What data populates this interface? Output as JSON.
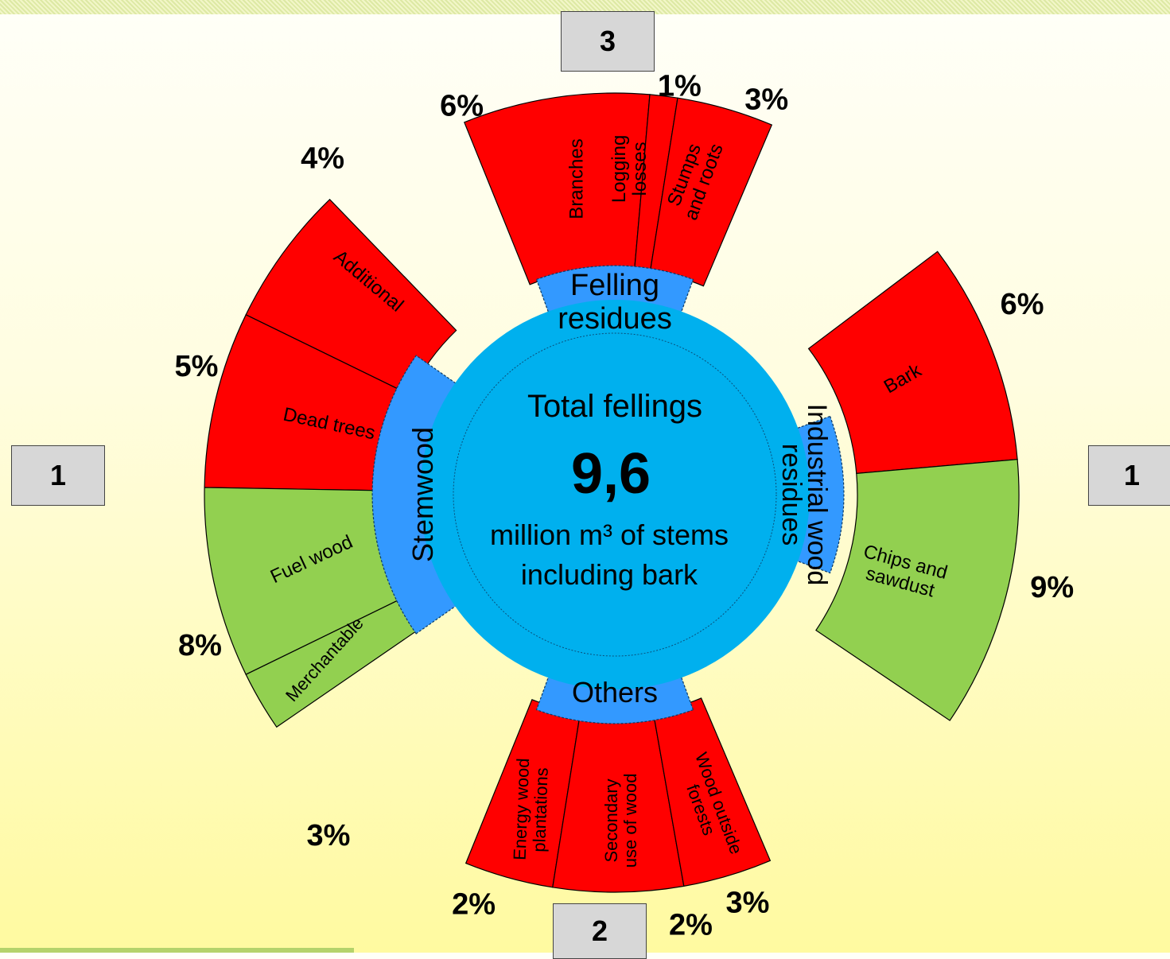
{
  "center": {
    "title": "Total fellings",
    "value": "9,6",
    "unit_line1": "million m³ of stems",
    "unit_line2": "including bark"
  },
  "markers": {
    "left": "1",
    "right": "1",
    "top": "3",
    "bottom": "2"
  },
  "colors": {
    "center_circle": "#00b0ee",
    "inner_band": "#3399ff",
    "residue_segment": "#ff0000",
    "wood_segment": "#92d050",
    "marker_box": "#d7d7d7"
  },
  "groups": [
    {
      "id": "felling",
      "label_lines": [
        "Felling",
        "residues"
      ],
      "segments": [
        {
          "label_lines": [
            "Branches"
          ],
          "percent": "6%",
          "color": "red"
        },
        {
          "label_lines": [
            "Logging",
            "losses"
          ],
          "percent": "1%",
          "color": "red"
        },
        {
          "label_lines": [
            "Stumps",
            "and roots"
          ],
          "percent": "3%",
          "color": "red"
        }
      ]
    },
    {
      "id": "industrial",
      "label_lines": [
        "Industrial wood",
        "residues"
      ],
      "segments": [
        {
          "label_lines": [
            "Bark"
          ],
          "percent": "6%",
          "color": "red"
        },
        {
          "label_lines": [
            "Chips and",
            "sawdust"
          ],
          "percent": "9%",
          "color": "green"
        }
      ]
    },
    {
      "id": "others",
      "label_lines": [
        "Others"
      ],
      "segments": [
        {
          "label_lines": [
            "Energy wood",
            "plantations"
          ],
          "percent": "2%",
          "color": "red"
        },
        {
          "label_lines": [
            "Secondary",
            "use of wood"
          ],
          "percent": "2%",
          "color": "red"
        },
        {
          "label_lines": [
            "Wood outside",
            "forests"
          ],
          "percent": "3%",
          "color": "red"
        }
      ]
    },
    {
      "id": "stemwood",
      "label_lines": [
        "Stemwood"
      ],
      "segments": [
        {
          "label_lines": [
            "Additional"
          ],
          "percent": "4%",
          "color": "red"
        },
        {
          "label_lines": [
            "Dead trees"
          ],
          "percent": "5%",
          "color": "red"
        },
        {
          "label_lines": [
            "Fuel wood"
          ],
          "percent": "8%",
          "color": "green"
        },
        {
          "label_lines": [
            "Merchantable"
          ],
          "percent": "3%",
          "color": "green"
        }
      ]
    }
  ]
}
